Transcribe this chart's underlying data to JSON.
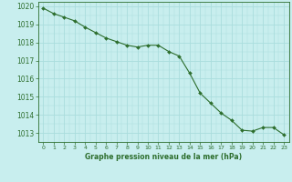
{
  "hours": [
    0,
    1,
    2,
    3,
    4,
    5,
    6,
    7,
    8,
    9,
    10,
    11,
    12,
    13,
    14,
    15,
    16,
    17,
    18,
    19,
    20,
    21,
    22,
    23
  ],
  "pressure": [
    1019.9,
    1019.6,
    1019.4,
    1019.2,
    1018.85,
    1018.55,
    1018.25,
    1018.05,
    1017.85,
    1017.75,
    1017.85,
    1017.85,
    1017.5,
    1017.25,
    1016.3,
    1015.2,
    1014.65,
    1014.1,
    1013.7,
    1013.15,
    1013.1,
    1013.3,
    1013.3,
    1012.9
  ],
  "line_color": "#2d6e2d",
  "marker_color": "#2d6e2d",
  "bg_color": "#c8eeee",
  "grid_major_color": "#aadddd",
  "xlabel": "Graphe pression niveau de la mer (hPa)",
  "xlabel_color": "#2d6e2d",
  "tick_color": "#2d6e2d",
  "ylim": [
    1012.5,
    1020.25
  ],
  "yticks": [
    1013,
    1014,
    1015,
    1016,
    1017,
    1018,
    1019,
    1020
  ],
  "xlim": [
    -0.5,
    23.5
  ],
  "xticks": [
    0,
    1,
    2,
    3,
    4,
    5,
    6,
    7,
    8,
    9,
    10,
    11,
    12,
    13,
    14,
    15,
    16,
    17,
    18,
    19,
    20,
    21,
    22,
    23
  ],
  "xtick_labels": [
    "0",
    "1",
    "2",
    "3",
    "4",
    "5",
    "6",
    "7",
    "8",
    "9",
    "10",
    "11",
    "12",
    "13",
    "14",
    "15",
    "16",
    "17",
    "18",
    "19",
    "20",
    "21",
    "22",
    "23"
  ]
}
